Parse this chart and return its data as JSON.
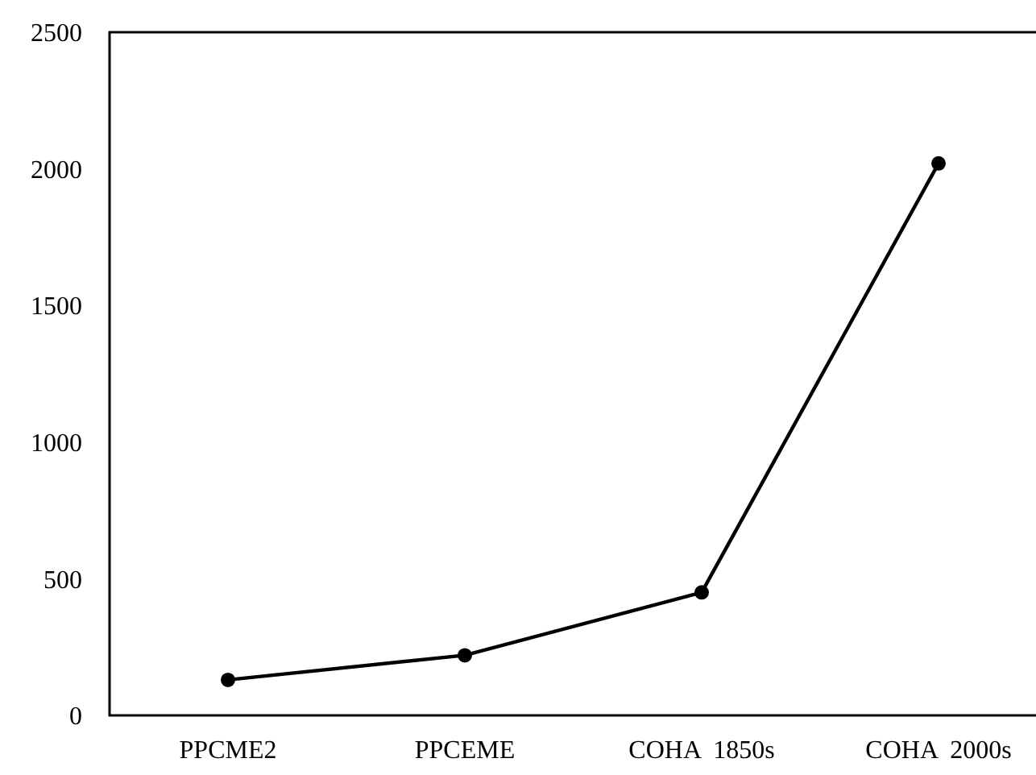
{
  "chart_data": {
    "type": "line",
    "categories": [
      "PPCME2",
      "PPCEME",
      "COHA  1850s",
      "COHA  2000s"
    ],
    "series": [
      {
        "color": "#000000",
        "values": [
          130,
          220,
          450,
          2020
        ]
      }
    ],
    "ylim": [
      0,
      2500
    ],
    "yticks": [
      0,
      500,
      1000,
      1500,
      2000,
      2500
    ],
    "marker": "circle",
    "line_style": "solid"
  }
}
